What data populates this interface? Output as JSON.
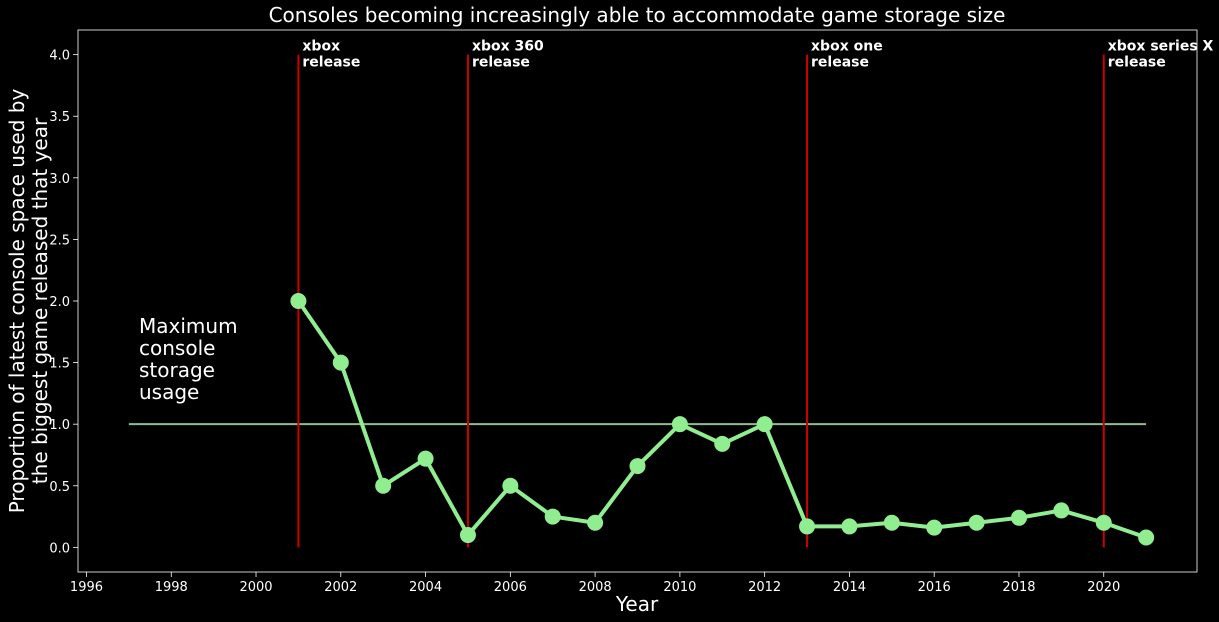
{
  "chart_data": {
    "type": "line",
    "title": "Consoles becoming increasingly able to accommodate game storage size",
    "xlabel": "Year",
    "ylabel_lines": [
      "Proportion of latest console space used by",
      "the biggest game released that year"
    ],
    "xlim": [
      1995.8,
      2022.2
    ],
    "ylim": [
      -0.2,
      4.2
    ],
    "xticks": [
      1996,
      1998,
      2000,
      2002,
      2004,
      2006,
      2008,
      2010,
      2012,
      2014,
      2016,
      2018,
      2020
    ],
    "yticks": [
      "0.0",
      "0.5",
      "1.0",
      "1.5",
      "2.0",
      "2.5",
      "3.0",
      "3.5",
      "4.0"
    ],
    "grid": false,
    "series": [
      {
        "x": [
          2001,
          2002,
          2003,
          2004,
          2005,
          2006,
          2007,
          2008,
          2009,
          2010,
          2011,
          2012,
          2013,
          2014,
          2015,
          2016,
          2017,
          2018,
          2019,
          2020,
          2021
        ],
        "values": [
          2.0,
          1.5,
          0.5,
          0.72,
          0.1,
          0.5,
          0.25,
          0.2,
          0.66,
          1.0,
          0.84,
          1.0,
          0.17,
          0.17,
          0.2,
          0.16,
          0.2,
          0.24,
          0.3,
          0.2,
          0.08
        ],
        "color": "#90ee90"
      }
    ],
    "reference_line": {
      "y": 1.0,
      "x_range": [
        1997,
        2021
      ],
      "label_lines": [
        "Maximum",
        "console",
        "storage",
        "usage"
      ],
      "color": "#8fbc8f"
    },
    "release_lines": [
      {
        "x": 2001,
        "y_range": [
          0,
          4
        ],
        "label_lines": [
          "xbox",
          "release"
        ]
      },
      {
        "x": 2005,
        "y_range": [
          0,
          4
        ],
        "label_lines": [
          "xbox 360",
          "release"
        ]
      },
      {
        "x": 2013,
        "y_range": [
          0,
          4
        ],
        "label_lines": [
          "xbox one",
          "release"
        ]
      },
      {
        "x": 2020,
        "y_range": [
          0,
          4
        ],
        "label_lines": [
          "xbox series X",
          "release"
        ]
      }
    ],
    "release_line_color": "#cc0000",
    "background": "#000000",
    "axis_color": "#ffffff"
  }
}
